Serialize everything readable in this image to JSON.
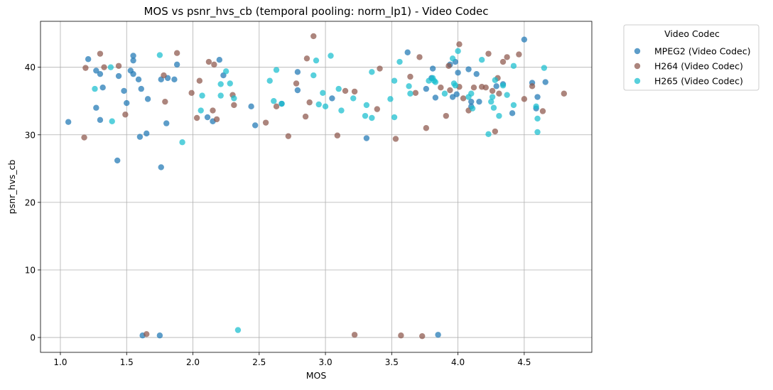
{
  "chart_data": {
    "type": "scatter",
    "title": "MOS vs psnr_hvs_cb (temporal pooling: norm_lp1) - Video Codec",
    "xlabel": "MOS",
    "ylabel": "psnr_hvs_cb",
    "xlim": [
      0.85,
      5.01
    ],
    "ylim": [
      -2.2,
      46.8
    ],
    "x_ticks": [
      1.0,
      1.5,
      2.0,
      2.5,
      3.0,
      3.5,
      4.0,
      4.5
    ],
    "x_tick_labels": [
      "1.0",
      "1.5",
      "2.0",
      "2.5",
      "3.0",
      "3.5",
      "4.0",
      "4.5"
    ],
    "y_ticks": [
      0,
      10,
      20,
      30,
      40
    ],
    "y_tick_labels": [
      "0",
      "10",
      "20",
      "30",
      "40"
    ],
    "grid": true,
    "legend": {
      "title": "Video Codec",
      "placement": "outside-top-right"
    },
    "series": [
      {
        "name": "MPEG2 (Video Codec)",
        "color": "#1f77b4",
        "points": [
          [
            1.06,
            31.9
          ],
          [
            1.21,
            41.2
          ],
          [
            1.27,
            39.5
          ],
          [
            1.27,
            34.0
          ],
          [
            1.3,
            39.0
          ],
          [
            1.3,
            32.2
          ],
          [
            1.32,
            37.0
          ],
          [
            1.43,
            26.2
          ],
          [
            1.44,
            38.7
          ],
          [
            1.48,
            36.5
          ],
          [
            1.5,
            34.7
          ],
          [
            1.53,
            39.5
          ],
          [
            1.55,
            41.7
          ],
          [
            1.55,
            41.0
          ],
          [
            1.55,
            39.0
          ],
          [
            1.59,
            38.2
          ],
          [
            1.6,
            29.7
          ],
          [
            1.61,
            36.8
          ],
          [
            1.65,
            30.2
          ],
          [
            1.66,
            35.3
          ],
          [
            1.76,
            25.2
          ],
          [
            1.76,
            38.2
          ],
          [
            1.8,
            31.7
          ],
          [
            1.81,
            38.4
          ],
          [
            1.86,
            38.2
          ],
          [
            1.88,
            40.4
          ],
          [
            2.11,
            32.6
          ],
          [
            2.15,
            32.0
          ],
          [
            2.2,
            41.1
          ],
          [
            2.23,
            38.8
          ],
          [
            2.44,
            34.2
          ],
          [
            2.47,
            31.4
          ],
          [
            2.67,
            34.6
          ],
          [
            2.79,
            39.3
          ],
          [
            2.79,
            36.6
          ],
          [
            3.05,
            35.4
          ],
          [
            3.31,
            29.5
          ],
          [
            3.62,
            42.2
          ],
          [
            3.76,
            36.8
          ],
          [
            3.8,
            38.4
          ],
          [
            3.81,
            39.8
          ],
          [
            3.83,
            35.5
          ],
          [
            3.94,
            40.4
          ],
          [
            3.96,
            35.6
          ],
          [
            3.98,
            40.8
          ],
          [
            3.99,
            36.0
          ],
          [
            4.0,
            39.2
          ],
          [
            4.08,
            39.7
          ],
          [
            4.1,
            34.9
          ],
          [
            4.1,
            34.2
          ],
          [
            4.14,
            39.0
          ],
          [
            4.16,
            34.9
          ],
          [
            4.29,
            37.2
          ],
          [
            4.34,
            37.5
          ],
          [
            4.41,
            33.2
          ],
          [
            4.5,
            44.1
          ],
          [
            4.56,
            37.7
          ],
          [
            4.59,
            33.9
          ],
          [
            4.6,
            35.6
          ],
          [
            4.66,
            37.8
          ],
          [
            1.62,
            0.3
          ],
          [
            1.75,
            0.3
          ],
          [
            3.85,
            0.4
          ]
        ]
      },
      {
        "name": "H264 (Video Codec)",
        "color": "#8c564b",
        "points": [
          [
            1.18,
            29.6
          ],
          [
            1.19,
            39.9
          ],
          [
            1.3,
            42.0
          ],
          [
            1.33,
            40.0
          ],
          [
            1.44,
            40.2
          ],
          [
            1.49,
            33.0
          ],
          [
            1.78,
            38.8
          ],
          [
            1.79,
            34.9
          ],
          [
            1.88,
            42.1
          ],
          [
            1.99,
            36.2
          ],
          [
            2.03,
            32.5
          ],
          [
            2.05,
            38.0
          ],
          [
            2.12,
            40.8
          ],
          [
            2.15,
            33.6
          ],
          [
            2.16,
            40.4
          ],
          [
            2.18,
            32.3
          ],
          [
            2.3,
            35.9
          ],
          [
            2.31,
            34.4
          ],
          [
            2.55,
            31.8
          ],
          [
            2.63,
            34.2
          ],
          [
            2.72,
            29.8
          ],
          [
            2.78,
            37.6
          ],
          [
            2.85,
            32.7
          ],
          [
            2.86,
            41.3
          ],
          [
            2.88,
            34.8
          ],
          [
            2.91,
            44.6
          ],
          [
            3.09,
            29.9
          ],
          [
            3.15,
            36.5
          ],
          [
            3.22,
            36.4
          ],
          [
            3.39,
            33.8
          ],
          [
            3.41,
            39.8
          ],
          [
            3.53,
            29.4
          ],
          [
            3.64,
            38.6
          ],
          [
            3.68,
            36.2
          ],
          [
            3.71,
            41.5
          ],
          [
            3.76,
            31.0
          ],
          [
            3.87,
            37.0
          ],
          [
            3.91,
            32.8
          ],
          [
            3.93,
            40.2
          ],
          [
            3.94,
            36.6
          ],
          [
            4.01,
            43.4
          ],
          [
            4.01,
            37.1
          ],
          [
            4.04,
            35.4
          ],
          [
            4.08,
            33.6
          ],
          [
            4.12,
            37.0
          ],
          [
            4.18,
            37.1
          ],
          [
            4.21,
            37.0
          ],
          [
            4.23,
            42.0
          ],
          [
            4.26,
            36.5
          ],
          [
            4.28,
            30.5
          ],
          [
            4.3,
            38.4
          ],
          [
            4.31,
            36.1
          ],
          [
            4.34,
            40.8
          ],
          [
            4.37,
            41.5
          ],
          [
            4.46,
            41.9
          ],
          [
            4.5,
            35.3
          ],
          [
            4.56,
            37.2
          ],
          [
            4.64,
            33.5
          ],
          [
            4.8,
            36.1
          ],
          [
            1.65,
            0.5
          ],
          [
            3.22,
            0.4
          ],
          [
            3.57,
            0.3
          ],
          [
            3.73,
            0.2
          ]
        ]
      },
      {
        "name": "H265 (Video Codec)",
        "color": "#17becf",
        "points": [
          [
            1.26,
            36.8
          ],
          [
            1.38,
            40.0
          ],
          [
            1.39,
            32.0
          ],
          [
            1.75,
            41.8
          ],
          [
            1.92,
            28.9
          ],
          [
            2.06,
            33.6
          ],
          [
            2.07,
            35.8
          ],
          [
            2.21,
            37.5
          ],
          [
            2.21,
            35.8
          ],
          [
            2.25,
            39.4
          ],
          [
            2.28,
            37.6
          ],
          [
            2.31,
            35.4
          ],
          [
            2.58,
            38.0
          ],
          [
            2.61,
            35.0
          ],
          [
            2.63,
            39.6
          ],
          [
            2.67,
            34.6
          ],
          [
            2.91,
            38.8
          ],
          [
            2.93,
            41.0
          ],
          [
            2.95,
            34.5
          ],
          [
            2.98,
            36.2
          ],
          [
            3.0,
            34.2
          ],
          [
            3.04,
            41.7
          ],
          [
            3.1,
            36.8
          ],
          [
            3.12,
            33.6
          ],
          [
            3.21,
            35.4
          ],
          [
            3.3,
            32.8
          ],
          [
            3.31,
            34.4
          ],
          [
            3.35,
            39.3
          ],
          [
            3.35,
            32.5
          ],
          [
            3.49,
            35.3
          ],
          [
            3.52,
            32.6
          ],
          [
            3.52,
            38.0
          ],
          [
            3.56,
            40.8
          ],
          [
            3.63,
            37.2
          ],
          [
            3.64,
            36.1
          ],
          [
            3.78,
            38.0
          ],
          [
            3.81,
            38.4
          ],
          [
            3.82,
            38.0
          ],
          [
            3.83,
            37.8
          ],
          [
            3.9,
            36.1
          ],
          [
            3.96,
            41.3
          ],
          [
            3.97,
            37.6
          ],
          [
            3.98,
            37.3
          ],
          [
            4.0,
            42.4
          ],
          [
            4.08,
            35.6
          ],
          [
            4.1,
            36.1
          ],
          [
            4.11,
            33.9
          ],
          [
            4.18,
            41.1
          ],
          [
            4.23,
            30.1
          ],
          [
            4.25,
            34.9
          ],
          [
            4.26,
            35.6
          ],
          [
            4.27,
            34.0
          ],
          [
            4.28,
            38.1
          ],
          [
            4.31,
            32.8
          ],
          [
            4.34,
            37.3
          ],
          [
            4.37,
            35.9
          ],
          [
            4.42,
            40.2
          ],
          [
            4.42,
            34.4
          ],
          [
            4.59,
            34.2
          ],
          [
            4.6,
            32.4
          ],
          [
            4.6,
            30.4
          ],
          [
            4.65,
            39.9
          ],
          [
            2.34,
            1.1
          ]
        ]
      }
    ]
  }
}
